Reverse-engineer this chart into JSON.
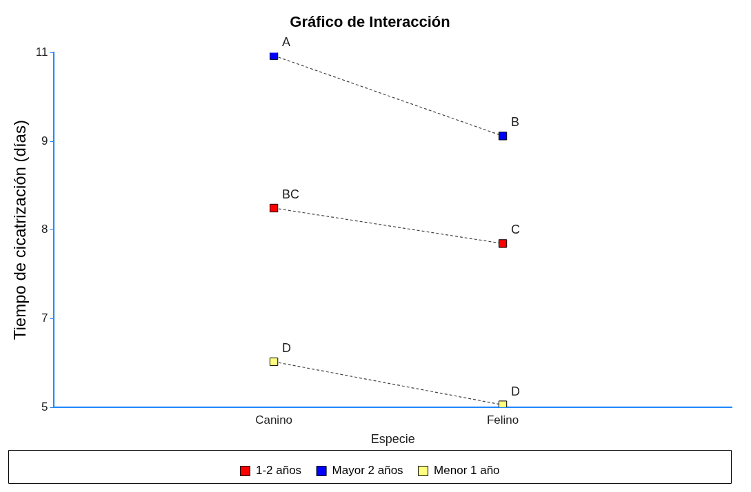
{
  "chart_data": {
    "type": "line",
    "title": "Gráfico de Interacción",
    "xlabel": "Especie",
    "ylabel": "Tiempo de cicatrización (días)",
    "categories": [
      "Canino",
      "Felino"
    ],
    "series": [
      {
        "name": "1-2 años",
        "color": "#ff0000",
        "values": [
          8.37,
          7.77
        ]
      },
      {
        "name": "Mayor 2 años",
        "color": "#0000ff",
        "values": [
          10.95,
          9.59
        ]
      },
      {
        "name": "Menor 1 año",
        "color": "#ffff80",
        "values": [
          5.77,
          5.04
        ]
      }
    ],
    "ylim": [
      5,
      11
    ],
    "yticks": [
      5,
      {
        "value": 6.5,
        "label": "7"
      },
      8,
      {
        "value": 9.5,
        "label": "9"
      },
      11
    ],
    "annotations": [
      {
        "text": "A",
        "x": "Canino",
        "y": 10.95
      },
      {
        "text": "B",
        "x": "Felino",
        "y": 9.59
      },
      {
        "text": "BC",
        "x": "Canino",
        "y": 8.37
      },
      {
        "text": "C",
        "x": "Felino",
        "y": 7.77
      },
      {
        "text": "D",
        "x": "Canino",
        "y": 5.77
      },
      {
        "text": "D",
        "x": "Felino",
        "y": 5.04
      }
    ],
    "grid": false,
    "legend": "bottom",
    "marker": "square",
    "line_style": "dashed"
  }
}
